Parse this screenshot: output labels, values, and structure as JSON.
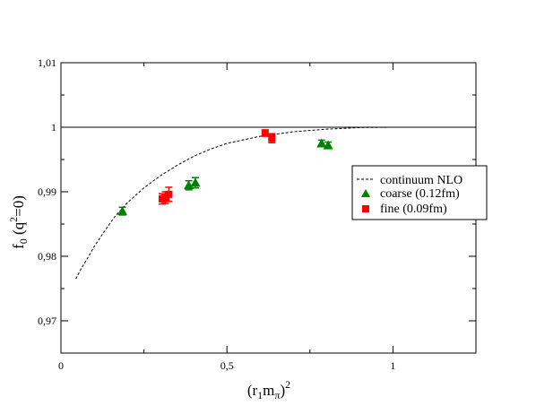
{
  "chart_data": {
    "type": "scatter",
    "xlabel": {
      "base": "(r",
      "sub1": "1",
      "mid": "m",
      "sub2": "π",
      "close": ")",
      "sup": "2"
    },
    "ylabel": {
      "base": "f",
      "sub": "0",
      "open": " (q",
      "sup": "2",
      "rest": "=0)"
    },
    "xlim": [
      0,
      1.25
    ],
    "ylim": [
      0.965,
      1.01
    ],
    "xticks": [
      {
        "value": 0,
        "label": "0"
      },
      {
        "value": 0.5,
        "label": "0,5"
      },
      {
        "value": 1,
        "label": "1"
      }
    ],
    "yticks": [
      {
        "value": 0.97,
        "label": "0,97"
      },
      {
        "value": 0.98,
        "label": "0,98"
      },
      {
        "value": 0.99,
        "label": "0,99"
      },
      {
        "value": 1.0,
        "label": "1"
      },
      {
        "value": 1.01,
        "label": "1,01"
      }
    ],
    "reference_line": {
      "y": 1.0,
      "color": "#000000"
    },
    "legend": {
      "placement": "right",
      "entries": [
        {
          "label": "continuum NLO",
          "marker": "dashed-line",
          "color": "#000000"
        },
        {
          "label": "coarse (0.12fm)",
          "marker": "triangle",
          "color": "#008000"
        },
        {
          "label": "fine (0.09fm)",
          "marker": "square",
          "color": "#ff0000"
        }
      ]
    },
    "series": [
      {
        "name": "continuum NLO",
        "style": "dashed",
        "color": "#000000",
        "points": [
          {
            "x": 0.045,
            "y": 0.9765
          },
          {
            "x": 0.06,
            "y": 0.978
          },
          {
            "x": 0.08,
            "y": 0.9797
          },
          {
            "x": 0.1,
            "y": 0.9815
          },
          {
            "x": 0.13,
            "y": 0.9838
          },
          {
            "x": 0.16,
            "y": 0.986
          },
          {
            "x": 0.2,
            "y": 0.9883
          },
          {
            "x": 0.25,
            "y": 0.9906
          },
          {
            "x": 0.3,
            "y": 0.9925
          },
          {
            "x": 0.35,
            "y": 0.9941
          },
          {
            "x": 0.4,
            "y": 0.9955
          },
          {
            "x": 0.45,
            "y": 0.9966
          },
          {
            "x": 0.5,
            "y": 0.9975
          },
          {
            "x": 0.6,
            "y": 0.9986
          },
          {
            "x": 0.7,
            "y": 0.9993
          },
          {
            "x": 0.8,
            "y": 0.9997
          },
          {
            "x": 0.9,
            "y": 0.99995
          },
          {
            "x": 1.0,
            "y": 1.0
          },
          {
            "x": 1.15,
            "y": 1.0
          }
        ]
      },
      {
        "name": "coarse (0.12fm)",
        "marker": "triangle",
        "color": "#008000",
        "points": [
          {
            "x": 0.185,
            "y": 0.987,
            "err": 0.0006
          },
          {
            "x": 0.385,
            "y": 0.991,
            "err": 0.0007
          },
          {
            "x": 0.405,
            "y": 0.9914,
            "err": 0.0008
          },
          {
            "x": 0.785,
            "y": 0.9975,
            "err": 0.0005
          },
          {
            "x": 0.805,
            "y": 0.9972,
            "err": 0.0005
          }
        ]
      },
      {
        "name": "fine (0.09fm)",
        "marker": "square",
        "color": "#ff0000",
        "points": [
          {
            "x": 0.305,
            "y": 0.9889,
            "err": 0.0008
          },
          {
            "x": 0.315,
            "y": 0.9891,
            "err": 0.0009
          },
          {
            "x": 0.325,
            "y": 0.9896,
            "err": 0.0011
          },
          {
            "x": 0.615,
            "y": 0.9991,
            "err": 0.0005
          },
          {
            "x": 0.635,
            "y": 0.9983,
            "err": 0.0007
          }
        ]
      }
    ]
  }
}
